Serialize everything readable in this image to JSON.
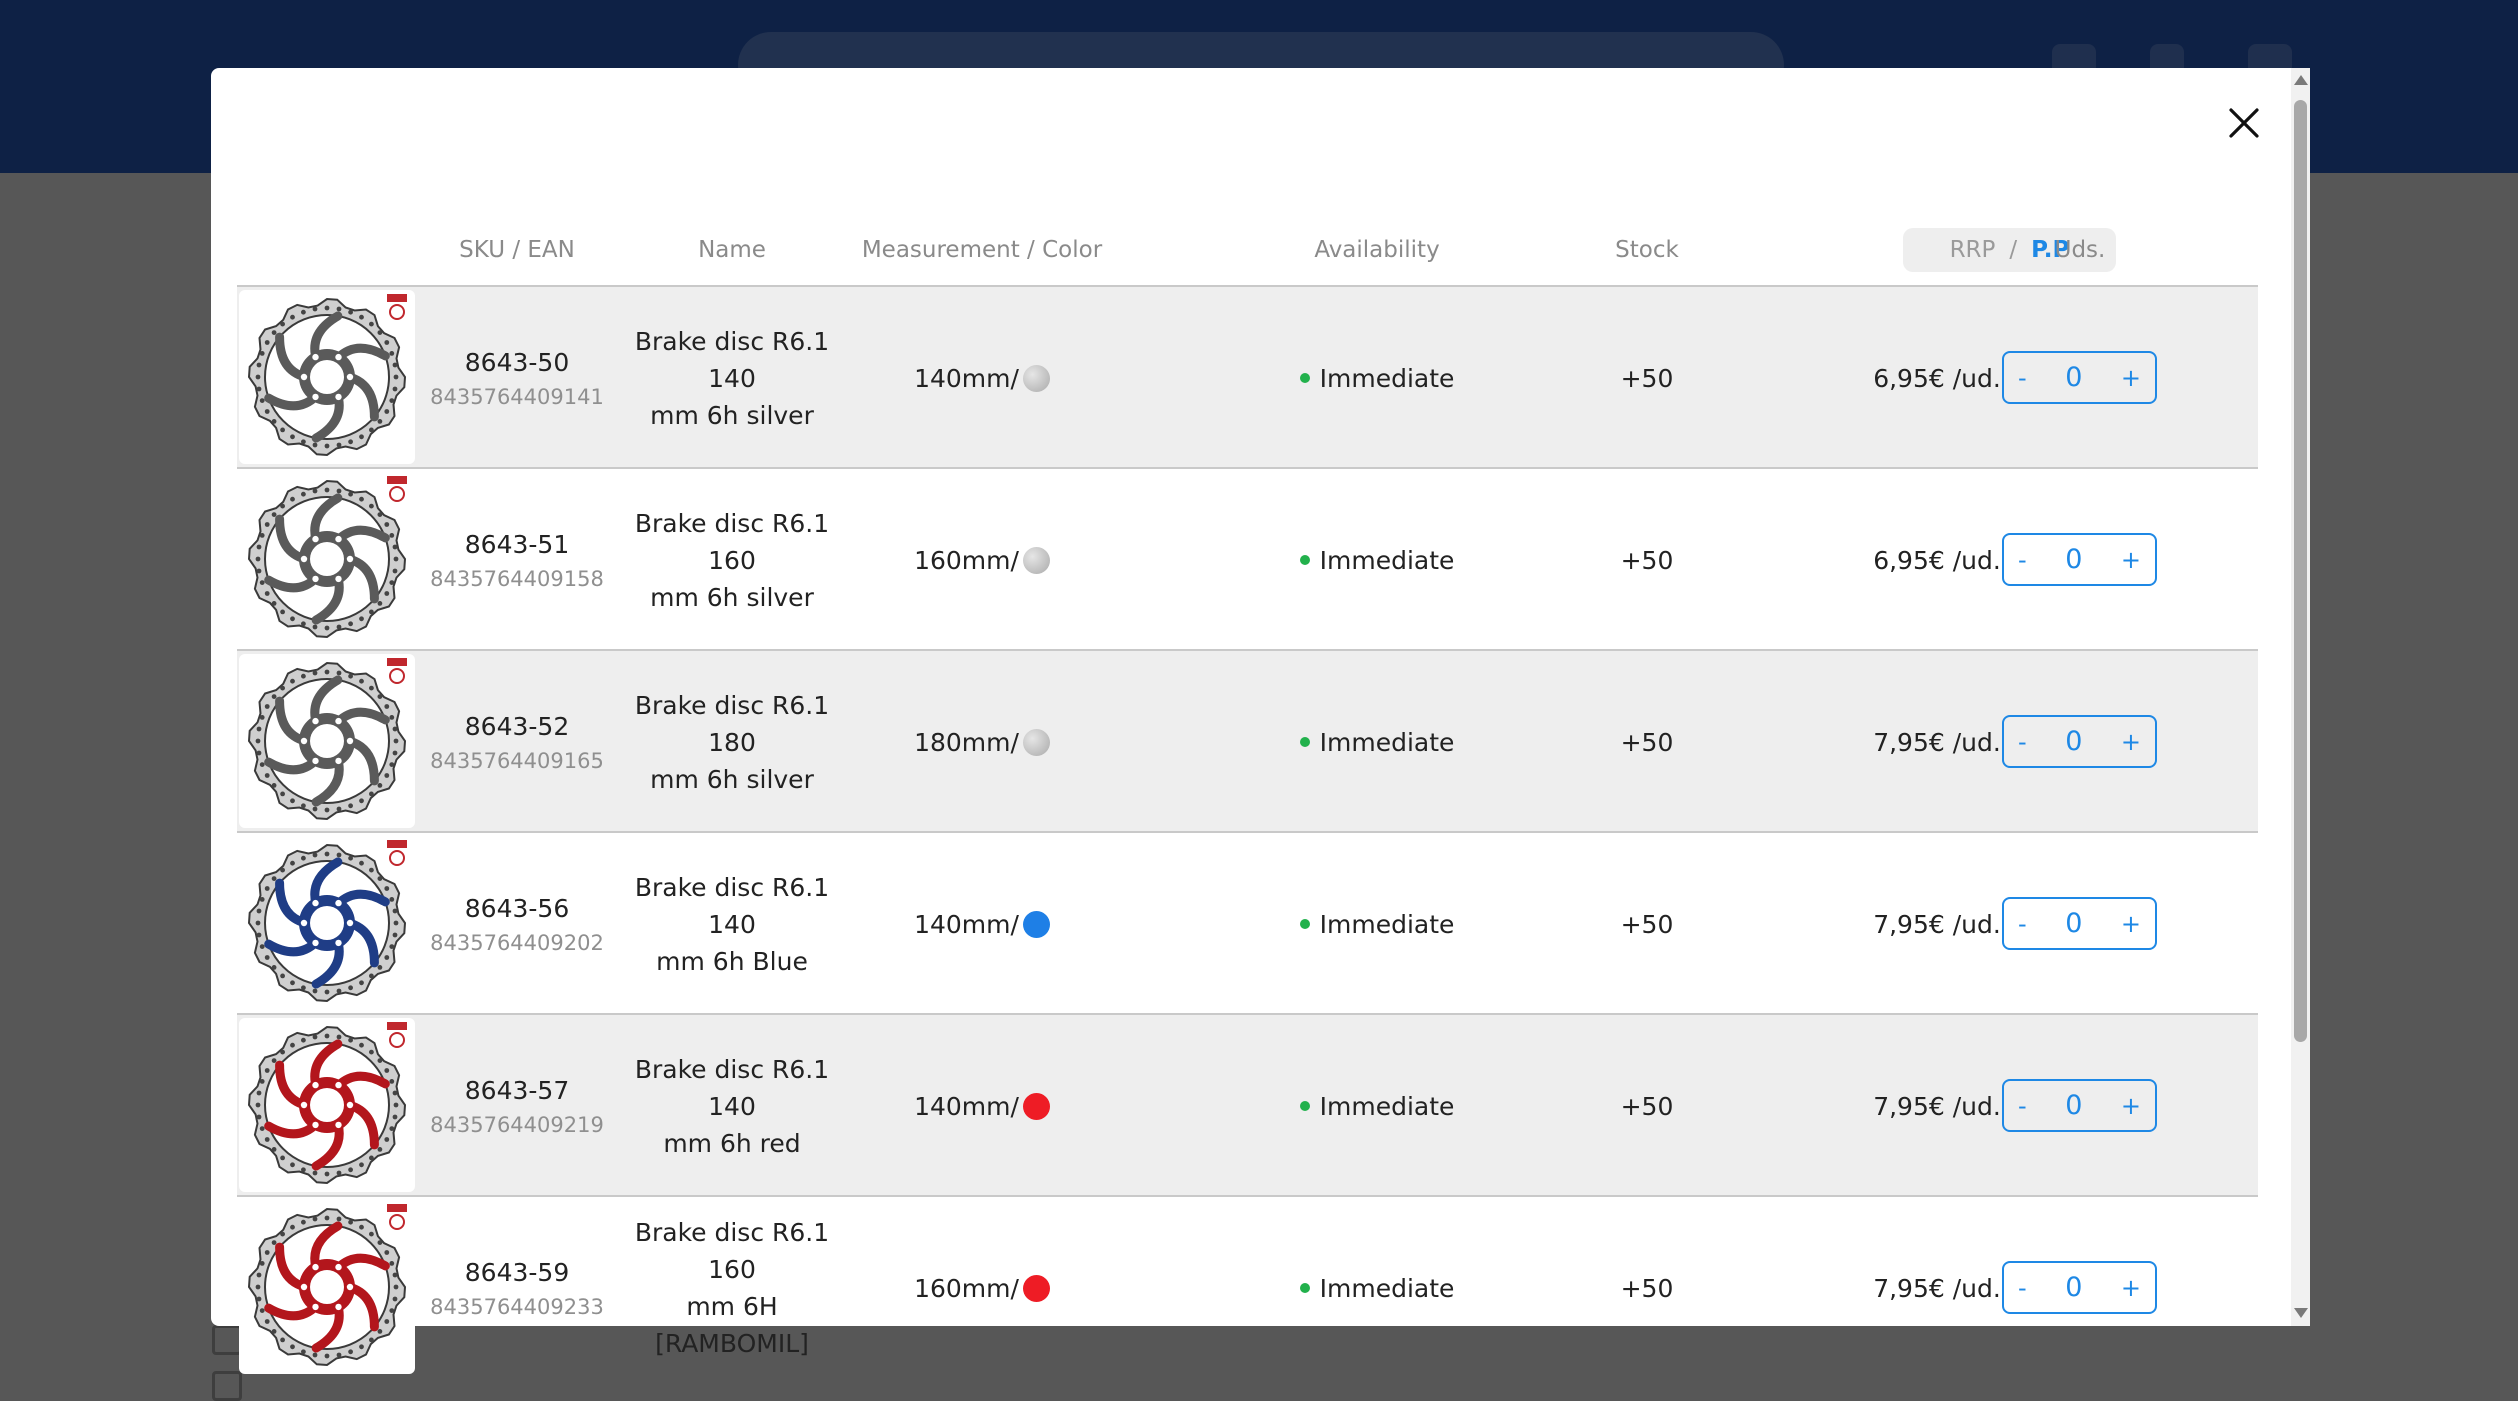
{
  "table": {
    "headers": {
      "sku_ean": "SKU / EAN",
      "name": "Name",
      "measurement_color": "Measurement / Color",
      "availability": "Availability",
      "stock": "Stock",
      "rrp": "RRP",
      "separator": "/",
      "pp": "P.P",
      "units": "Uds."
    },
    "rows": [
      {
        "sku": "8643-50",
        "ean": "8435764409141",
        "name_line1": "Brake disc R6.1 140",
        "name_line2": "mm 6h silver",
        "measurement": "140mm/",
        "color": "silver",
        "availability": "Immediate",
        "stock": "+50",
        "price": "6,95€ /ud.",
        "minus": "-",
        "qty": "0",
        "plus": "+"
      },
      {
        "sku": "8643-51",
        "ean": "8435764409158",
        "name_line1": "Brake disc R6.1 160",
        "name_line2": "mm 6h silver",
        "measurement": "160mm/",
        "color": "silver",
        "availability": "Immediate",
        "stock": "+50",
        "price": "6,95€ /ud.",
        "minus": "-",
        "qty": "0",
        "plus": "+"
      },
      {
        "sku": "8643-52",
        "ean": "8435764409165",
        "name_line1": "Brake disc R6.1 180",
        "name_line2": "mm 6h silver",
        "measurement": "180mm/",
        "color": "silver",
        "availability": "Immediate",
        "stock": "+50",
        "price": "7,95€ /ud.",
        "minus": "-",
        "qty": "0",
        "plus": "+"
      },
      {
        "sku": "8643-56",
        "ean": "8435764409202",
        "name_line1": "Brake disc R6.1 140",
        "name_line2": "mm 6h Blue",
        "measurement": "140mm/",
        "color": "blue",
        "availability": "Immediate",
        "stock": "+50",
        "price": "7,95€ /ud.",
        "minus": "-",
        "qty": "0",
        "plus": "+"
      },
      {
        "sku": "8643-57",
        "ean": "8435764409219",
        "name_line1": "Brake disc R6.1 140",
        "name_line2": "mm 6h red",
        "measurement": "140mm/",
        "color": "red",
        "availability": "Immediate",
        "stock": "+50",
        "price": "7,95€ /ud.",
        "minus": "-",
        "qty": "0",
        "plus": "+"
      },
      {
        "sku": "8643-59",
        "ean": "8435764409233",
        "name_line1": "Brake disc R6.1 160",
        "name_line2": "mm 6H [RAMBOMIL]",
        "measurement": "160mm/",
        "color": "red",
        "availability": "Immediate",
        "stock": "+50",
        "price": "7,95€ /ud.",
        "minus": "-",
        "qty": "0",
        "plus": "+"
      }
    ]
  },
  "colors": {
    "accent": "#1e88e5",
    "available_dot": "#22b14c",
    "swatch_silver": "#c4c4c4",
    "swatch_blue": "#1e7fe6",
    "swatch_red": "#ee1c25",
    "header_bg": "#0e2145",
    "row_alt_bg": "#eeeeee"
  },
  "icons": {
    "close": "close-icon",
    "product": "brake-disc-image",
    "status": "availability-dot-icon"
  }
}
